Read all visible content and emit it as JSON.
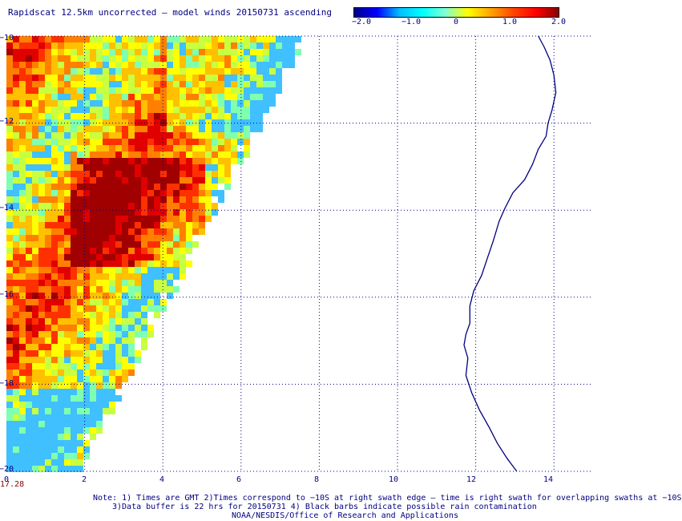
{
  "header": {
    "title": "Rapidscat 12.5km uncorrected — model winds 20150731 ascending"
  },
  "colorbar": {
    "tick_labels": [
      "−2.0",
      "−1.0",
      "0",
      "1.0",
      "2.0"
    ],
    "tick_values": [
      -2.0,
      -1.0,
      0,
      1.0,
      2.0
    ],
    "range": [
      -2.0,
      2.0
    ],
    "colors": [
      "#00008b",
      "#0000ff",
      "#00bfff",
      "#00ffff",
      "#7fffd4",
      "#ffff00",
      "#ffa500",
      "#ff4500",
      "#ff0000",
      "#8b0000"
    ]
  },
  "map": {
    "x_tick_labels": [
      "0",
      "2",
      "4",
      "6",
      "8",
      "10",
      "12",
      "14"
    ],
    "x_tick_values": [
      0,
      2,
      4,
      6,
      8,
      10,
      12,
      14
    ],
    "y_tick_labels": [
      "−10",
      "−12",
      "−14",
      "−16",
      "−18",
      "−20"
    ],
    "y_tick_values": [
      -10,
      -12,
      -14,
      -16,
      -18,
      -20
    ],
    "x_range": [
      0,
      15
    ],
    "y_range": [
      -20,
      -10
    ],
    "time_label": "17.28",
    "coastline_color": "#000080",
    "grid": "dotted",
    "coastline_lonlat": [
      [
        13.6,
        -10.0
      ],
      [
        13.75,
        -10.25
      ],
      [
        13.9,
        -10.55
      ],
      [
        14.0,
        -10.9
      ],
      [
        14.05,
        -11.3
      ],
      [
        13.95,
        -11.7
      ],
      [
        13.85,
        -12.0
      ],
      [
        13.8,
        -12.3
      ],
      [
        13.6,
        -12.6
      ],
      [
        13.45,
        -12.95
      ],
      [
        13.25,
        -13.3
      ],
      [
        12.95,
        -13.6
      ],
      [
        12.75,
        -13.95
      ],
      [
        12.6,
        -14.25
      ],
      [
        12.45,
        -14.7
      ],
      [
        12.3,
        -15.1
      ],
      [
        12.15,
        -15.5
      ],
      [
        11.95,
        -15.85
      ],
      [
        11.85,
        -16.2
      ],
      [
        11.85,
        -16.6
      ],
      [
        11.75,
        -16.85
      ],
      [
        11.7,
        -17.1
      ],
      [
        11.8,
        -17.4
      ],
      [
        11.75,
        -17.8
      ],
      [
        11.9,
        -18.2
      ],
      [
        12.1,
        -18.6
      ],
      [
        12.35,
        -19.0
      ],
      [
        12.55,
        -19.35
      ],
      [
        12.8,
        -19.7
      ],
      [
        13.05,
        -20.0
      ]
    ]
  },
  "notes": {
    "line1": "Note: 1) Times are GMT 2)Times correspond to −10S at right swath edge — time is right swath for overlapping swaths at −10S",
    "line2": "3)Data buffer is 22 hrs for 20150731 4) Black barbs indicate possible rain contamination",
    "line3": "NOAA/NESDIS/Office of Research and Applications"
  }
}
